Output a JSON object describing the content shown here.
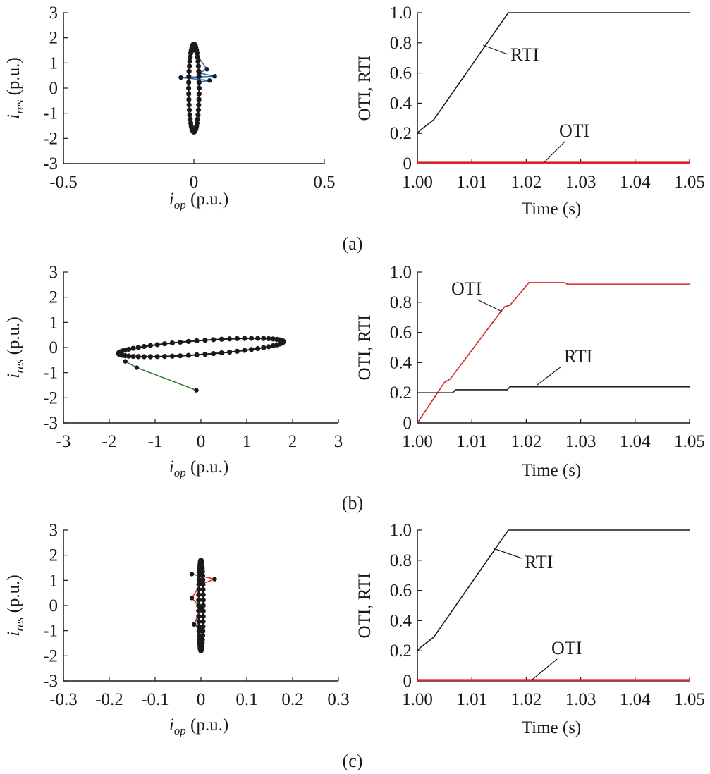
{
  "panels": [
    {
      "caption": "(a)",
      "scatter": {
        "xlabel": "i",
        "xlabel_sub": "op",
        "xlabel_unit": " (p.u.)",
        "ylabel": "i",
        "ylabel_sub": "res",
        "ylabel_unit": " (p.u.)",
        "xticks": [
          "-0.5",
          "0",
          "0.5"
        ],
        "yticks": [
          "3",
          "2",
          "1",
          "0",
          "-1",
          "-2",
          "-3"
        ]
      },
      "time": {
        "xlabel": "Time (s)",
        "ylabel": "OTI, RTI",
        "xticks": [
          "1.00",
          "1.01",
          "1.02",
          "1.03",
          "1.04",
          "1.05"
        ],
        "yticks": [
          "1.0",
          "0.8",
          "0.6",
          "0.4",
          "0.2",
          "0"
        ],
        "rti_label": "RTI",
        "oti_label": "OTI"
      }
    },
    {
      "caption": "(b)",
      "scatter": {
        "xlabel": "i",
        "xlabel_sub": "op",
        "xlabel_unit": " (p.u.)",
        "ylabel": "i",
        "ylabel_sub": "res",
        "ylabel_unit": " (p.u.)",
        "xticks": [
          "-3",
          "-2",
          "-1",
          "0",
          "1",
          "2",
          "3"
        ],
        "yticks": [
          "3",
          "2",
          "1",
          "0",
          "-1",
          "-2",
          "-3"
        ]
      },
      "time": {
        "xlabel": "Time (s)",
        "ylabel": "OTI, RTI",
        "xticks": [
          "1.00",
          "1.01",
          "1.02",
          "1.03",
          "1.04",
          "1.05"
        ],
        "yticks": [
          "1.0",
          "0.8",
          "0.6",
          "0.4",
          "0.2",
          "0"
        ],
        "rti_label": "RTI",
        "oti_label": "OTI"
      }
    },
    {
      "caption": "(c)",
      "scatter": {
        "xlabel": "i",
        "xlabel_sub": "op",
        "xlabel_unit": " (p.u.)",
        "ylabel": "i",
        "ylabel_sub": "res",
        "ylabel_unit": " (p.u.)",
        "xticks": [
          "-0.3",
          "-0.2",
          "-0.1",
          "0",
          "0.1",
          "0.2",
          "0.3"
        ],
        "yticks": [
          "3",
          "2",
          "1",
          "0",
          "-1",
          "-2",
          "-3"
        ]
      },
      "time": {
        "xlabel": "Time (s)",
        "ylabel": "OTI, RTI",
        "xticks": [
          "1.00",
          "1.01",
          "1.02",
          "1.03",
          "1.04",
          "1.05"
        ],
        "yticks": [
          "1.0",
          "0.8",
          "0.6",
          "0.4",
          "0.2",
          "0"
        ],
        "rti_label": "RTI",
        "oti_label": "OTI"
      }
    }
  ],
  "chart_data": [
    {
      "type": "scatter",
      "panel": "(a)",
      "xlim": [
        -0.5,
        0.5
      ],
      "ylim": [
        -3,
        3
      ],
      "shape": "narrow vertical ellipse",
      "ellipse": {
        "center": [
          0,
          0
        ],
        "x_halfwidth": 0.02,
        "y_halfheight": 1.75,
        "points": 48
      },
      "transient": {
        "color": "#2f6aa8",
        "points": [
          [
            0.0,
            1.5
          ],
          [
            0.05,
            0.75
          ],
          [
            0.02,
            0.6
          ],
          [
            0.08,
            0.47
          ],
          [
            -0.05,
            0.42
          ],
          [
            0.06,
            0.3
          ],
          [
            0.02,
            0.25
          ]
        ]
      },
      "grid": false
    },
    {
      "type": "line",
      "panel": "(a)",
      "xlim": [
        1.0,
        1.05
      ],
      "ylim": [
        0,
        1.0
      ],
      "series": [
        {
          "name": "RTI",
          "color": "#1a1a1a",
          "x": [
            1.0,
            1.0005,
            1.003,
            1.0167,
            1.05
          ],
          "y": [
            0.2,
            0.22,
            0.29,
            1.0,
            1.0
          ]
        },
        {
          "name": "OTI",
          "color": "#d62728",
          "x": [
            1.0,
            1.05
          ],
          "y": [
            0.005,
            0.005
          ]
        }
      ],
      "grid": false
    },
    {
      "type": "scatter",
      "panel": "(b)",
      "xlim": [
        -3,
        3
      ],
      "ylim": [
        -3,
        3
      ],
      "shape": "tilted flat ellipse",
      "ellipse": {
        "center": [
          0,
          0
        ],
        "x_halfwidth": 1.8,
        "y_halfheight": 0.28,
        "points": 62
      },
      "transient": {
        "color": "#2e7d32",
        "points": [
          [
            -1.65,
            -0.55
          ],
          [
            -1.4,
            -0.8
          ],
          [
            -0.1,
            -1.7
          ]
        ]
      },
      "grid": false
    },
    {
      "type": "line",
      "panel": "(b)",
      "xlim": [
        1.0,
        1.05
      ],
      "ylim": [
        0,
        1.0
      ],
      "series": [
        {
          "name": "OTI",
          "color": "#d62728",
          "x": [
            1.0,
            1.005,
            1.006,
            1.016,
            1.017,
            1.0205,
            1.027,
            1.0275,
            1.05
          ],
          "y": [
            0.0,
            0.27,
            0.29,
            0.77,
            0.78,
            0.93,
            0.93,
            0.92,
            0.92
          ]
        },
        {
          "name": "RTI",
          "color": "#1a1a1a",
          "x": [
            1.0,
            1.0065,
            1.007,
            1.0165,
            1.017,
            1.05
          ],
          "y": [
            0.2,
            0.2,
            0.22,
            0.22,
            0.24,
            0.24
          ]
        }
      ],
      "grid": false
    },
    {
      "type": "scatter",
      "panel": "(c)",
      "xlim": [
        -0.3,
        0.3
      ],
      "ylim": [
        -3,
        3
      ],
      "shape": "narrow vertical ellipse",
      "ellipse": {
        "center": [
          0,
          0
        ],
        "x_halfwidth": 0.005,
        "y_halfheight": 1.8,
        "points": 52
      },
      "transient": {
        "color": "#d62728",
        "points": [
          [
            -0.02,
            1.25
          ],
          [
            0.03,
            1.05
          ],
          [
            0.0,
            0.85
          ],
          [
            -0.02,
            0.3
          ],
          [
            0.0,
            -0.1
          ],
          [
            -0.015,
            -0.75
          ],
          [
            0.0,
            -0.95
          ]
        ]
      },
      "grid": false
    },
    {
      "type": "line",
      "panel": "(c)",
      "xlim": [
        1.0,
        1.05
      ],
      "ylim": [
        0,
        1.0
      ],
      "series": [
        {
          "name": "RTI",
          "color": "#1a1a1a",
          "x": [
            1.0,
            1.0005,
            1.003,
            1.0167,
            1.05
          ],
          "y": [
            0.2,
            0.22,
            0.29,
            1.0,
            1.0
          ]
        },
        {
          "name": "OTI",
          "color": "#d62728",
          "x": [
            1.0,
            1.05
          ],
          "y": [
            0.005,
            0.005
          ]
        }
      ],
      "grid": false
    }
  ]
}
